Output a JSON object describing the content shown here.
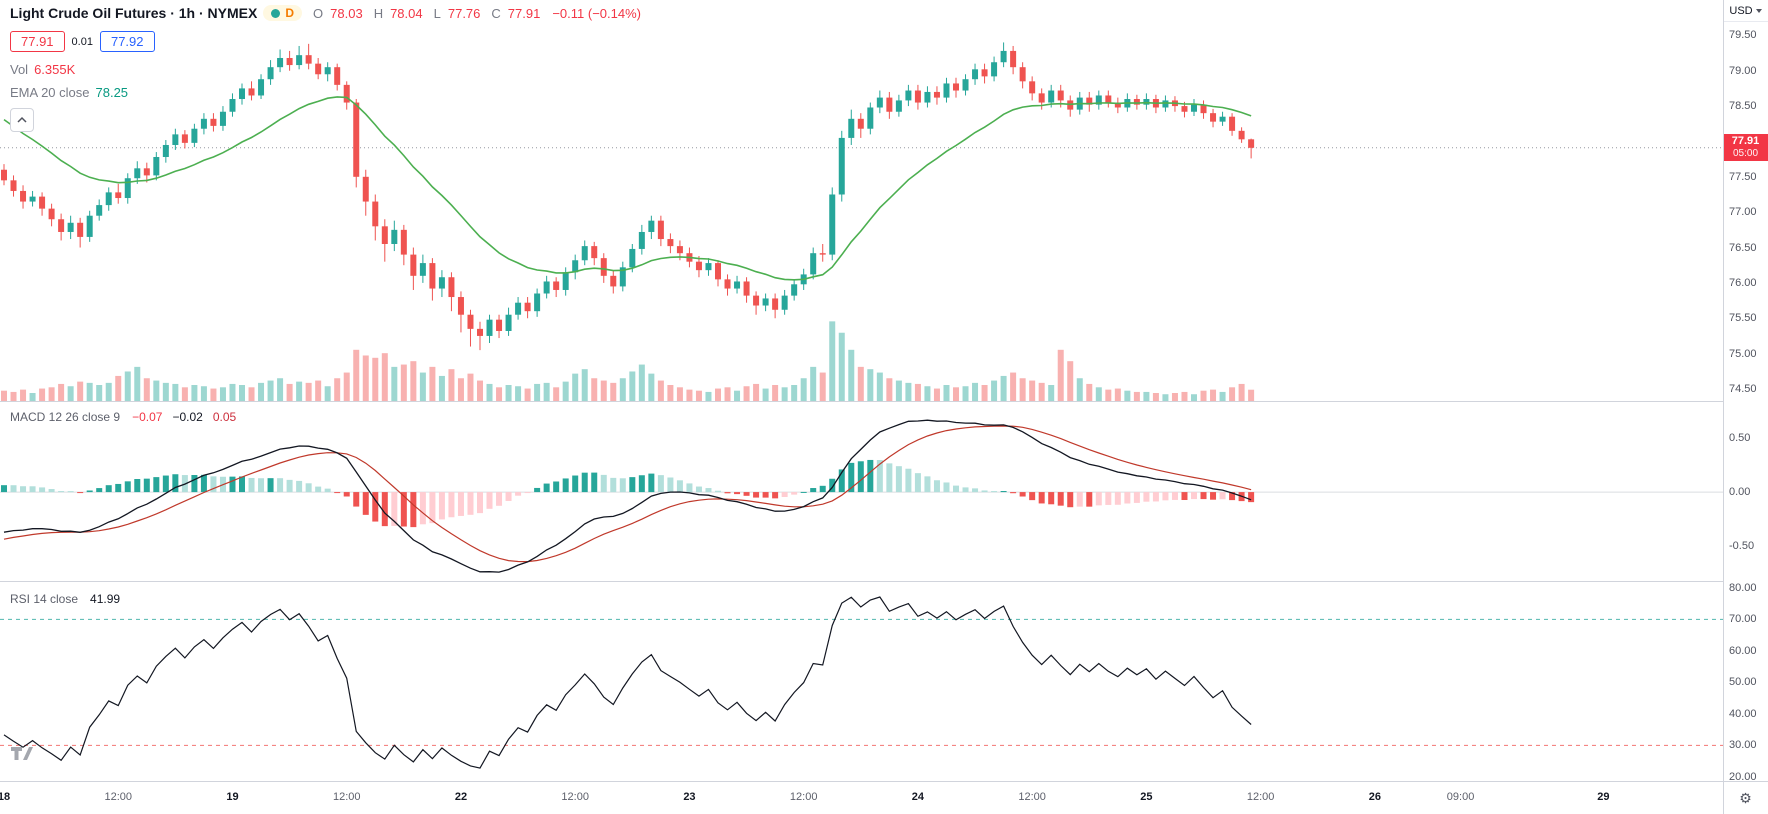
{
  "header": {
    "symbol_title": "Light Crude Oil Futures · 1h · NYMEX",
    "delayed_badge": "D",
    "ohlc": {
      "o_label": "O",
      "o": "78.03",
      "h_label": "H",
      "h": "78.04",
      "l_label": "L",
      "l": "77.76",
      "c_label": "C",
      "c": "77.91",
      "change": "−0.11 (−0.14%)"
    },
    "sell_price": "77.91",
    "spread": "0.01",
    "buy_price": "77.92",
    "vol_label": "Vol",
    "vol_value": "6.355K",
    "ema_label": "EMA 20 close",
    "ema_value": "78.25"
  },
  "macd_legend": {
    "label": "MACD 12 26 close 9",
    "hist": "−0.07",
    "macd": "−0.02",
    "signal": "0.05"
  },
  "rsi_legend": {
    "label": "RSI 14 close",
    "value": "41.99"
  },
  "price_axis": {
    "currency": "USD",
    "last_price_label": "77.91",
    "countdown": "05:00"
  },
  "chart_data": {
    "type": "candlestick",
    "symbol": "Light Crude Oil Futures",
    "timeframe": "1h",
    "exchange": "NYMEX",
    "price_range": [
      74.33,
      80.0
    ],
    "last_price": 77.91,
    "volume_max": 45,
    "price_ticks": [
      {
        "v": 79.5,
        "t": "79.50"
      },
      {
        "v": 79.0,
        "t": "79.00"
      },
      {
        "v": 78.5,
        "t": "78.50"
      },
      {
        "v": 77.5,
        "t": "77.50"
      },
      {
        "v": 77.0,
        "t": "77.00"
      },
      {
        "v": 76.5,
        "t": "76.50"
      },
      {
        "v": 76.0,
        "t": "76.00"
      },
      {
        "v": 75.5,
        "t": "75.50"
      },
      {
        "v": 75.0,
        "t": "75.00"
      },
      {
        "v": 74.5,
        "t": "74.50"
      }
    ],
    "time_labels": [
      {
        "i": 0,
        "t": "18",
        "major": true
      },
      {
        "i": 12,
        "t": "12:00",
        "major": false
      },
      {
        "i": 24,
        "t": "19",
        "major": true
      },
      {
        "i": 36,
        "t": "12:00",
        "major": false
      },
      {
        "i": 48,
        "t": "22",
        "major": true
      },
      {
        "i": 60,
        "t": "12:00",
        "major": false
      },
      {
        "i": 72,
        "t": "23",
        "major": true
      },
      {
        "i": 84,
        "t": "12:00",
        "major": false
      },
      {
        "i": 96,
        "t": "24",
        "major": true
      },
      {
        "i": 108,
        "t": "12:00",
        "major": false
      },
      {
        "i": 120,
        "t": "25",
        "major": true
      },
      {
        "i": 132,
        "t": "12:00",
        "major": false
      },
      {
        "i": 144,
        "t": "26",
        "major": true
      },
      {
        "i": 153,
        "t": "09:00",
        "major": false
      },
      {
        "i": 168,
        "t": "29",
        "major": true
      }
    ],
    "indicators": {
      "ema": {
        "period": 20,
        "start_value": 78.4,
        "last_value": "78.25"
      },
      "macd": {
        "fast": 12,
        "slow": 26,
        "smoothing": 9,
        "start_macd": -0.4,
        "start_signal": -0.45,
        "range": [
          -0.82,
          0.84
        ],
        "ticks": [
          {
            "v": 0.5,
            "t": "0.50"
          },
          {
            "v": 0,
            "t": "0.00"
          },
          {
            "v": -0.5,
            "t": "-0.50"
          }
        ]
      },
      "rsi": {
        "period": 14,
        "seed_gain": 0.06,
        "seed_loss": 0.12,
        "bands": [
          70,
          30
        ],
        "range": [
          18.7,
          82.2
        ],
        "ticks": [
          {
            "v": 80,
            "t": "80.00"
          },
          {
            "v": 70,
            "t": "70.00"
          },
          {
            "v": 60,
            "t": "60.00"
          },
          {
            "v": 50,
            "t": "50.00"
          },
          {
            "v": 40,
            "t": "40.00"
          },
          {
            "v": 30,
            "t": "30.00"
          },
          {
            "v": 20,
            "t": "20.00"
          }
        ]
      }
    },
    "colors": {
      "up": "#26a69a",
      "down": "#ef5350",
      "vol_up": "rgba(38,166,154,0.45)",
      "vol_down": "rgba(239,83,80,0.45)",
      "ema": "#4caf50",
      "macd_line": "#131722",
      "macd_signal": "#c0392b",
      "hist_up": "#26a69a",
      "hist_up_faded": "#b2dfdb",
      "hist_down": "#ef5350",
      "hist_down_faded": "#ffcdd2",
      "rsi_line": "#131722",
      "rsi_upper_band": "#26a69a",
      "rsi_lower_band": "#ef5350",
      "last_price_line": "#9598a1",
      "badge_bg": "#f23645"
    },
    "candles": [
      [
        77.6,
        77.68,
        77.38,
        77.45,
        5.8
      ],
      [
        77.45,
        77.52,
        77.22,
        77.3,
        5.1
      ],
      [
        77.3,
        77.38,
        77.05,
        77.15,
        6.4
      ],
      [
        77.15,
        77.3,
        77.08,
        77.22,
        4.5
      ],
      [
        77.22,
        77.28,
        76.95,
        77.05,
        7.0
      ],
      [
        77.05,
        77.12,
        76.8,
        76.9,
        7.7
      ],
      [
        76.9,
        76.98,
        76.6,
        76.72,
        9.6
      ],
      [
        76.72,
        76.95,
        76.62,
        76.85,
        8.3
      ],
      [
        76.85,
        76.92,
        76.5,
        76.65,
        10.9
      ],
      [
        76.65,
        77.02,
        76.58,
        76.95,
        10.2
      ],
      [
        76.95,
        77.18,
        76.88,
        77.1,
        9.0
      ],
      [
        77.1,
        77.35,
        77.02,
        77.28,
        10.2
      ],
      [
        77.28,
        77.4,
        77.12,
        77.2,
        14.1
      ],
      [
        77.2,
        77.55,
        77.12,
        77.48,
        16.6
      ],
      [
        77.48,
        77.72,
        77.4,
        77.62,
        19.2
      ],
      [
        77.62,
        77.7,
        77.42,
        77.52,
        12.8
      ],
      [
        77.52,
        77.85,
        77.45,
        77.78,
        11.5
      ],
      [
        77.78,
        78.02,
        77.7,
        77.95,
        10.2
      ],
      [
        77.95,
        78.18,
        77.88,
        78.1,
        9.6
      ],
      [
        78.1,
        78.16,
        77.9,
        77.98,
        7.7
      ],
      [
        77.98,
        78.25,
        77.92,
        78.18,
        9.0
      ],
      [
        78.18,
        78.4,
        78.1,
        78.32,
        8.3
      ],
      [
        78.32,
        78.4,
        78.14,
        78.22,
        7.0
      ],
      [
        78.22,
        78.5,
        78.15,
        78.42,
        7.7
      ],
      [
        78.42,
        78.68,
        78.35,
        78.6,
        9.6
      ],
      [
        78.6,
        78.82,
        78.52,
        78.75,
        9.0
      ],
      [
        78.75,
        78.85,
        78.58,
        78.65,
        7.7
      ],
      [
        78.65,
        78.95,
        78.6,
        78.88,
        10.2
      ],
      [
        78.88,
        79.15,
        78.8,
        79.05,
        11.5
      ],
      [
        79.05,
        79.3,
        78.98,
        79.18,
        12.8
      ],
      [
        79.18,
        79.28,
        79.0,
        79.08,
        9.6
      ],
      [
        79.08,
        79.35,
        79.02,
        79.22,
        10.9
      ],
      [
        79.22,
        79.38,
        79.02,
        79.1,
        10.2
      ],
      [
        79.1,
        79.18,
        78.88,
        78.95,
        11.5
      ],
      [
        78.95,
        79.12,
        78.85,
        79.05,
        8.3
      ],
      [
        79.05,
        79.1,
        78.72,
        78.8,
        12.8
      ],
      [
        78.8,
        78.85,
        78.45,
        78.55,
        16.0
      ],
      [
        78.55,
        78.6,
        77.35,
        77.5,
        28.8
      ],
      [
        77.5,
        77.6,
        76.95,
        77.15,
        25.6
      ],
      [
        77.15,
        77.25,
        76.6,
        76.8,
        24.3
      ],
      [
        76.8,
        76.9,
        76.3,
        76.55,
        26.9
      ],
      [
        76.55,
        76.88,
        76.45,
        76.75,
        19.2
      ],
      [
        76.75,
        76.82,
        76.25,
        76.4,
        20.5
      ],
      [
        76.4,
        76.5,
        75.9,
        76.1,
        22.4
      ],
      [
        76.1,
        76.4,
        76.0,
        76.28,
        16.0
      ],
      [
        76.28,
        76.35,
        75.75,
        75.92,
        19.2
      ],
      [
        75.92,
        76.18,
        75.8,
        76.08,
        14.1
      ],
      [
        76.08,
        76.15,
        75.6,
        75.8,
        17.9
      ],
      [
        75.8,
        75.88,
        75.3,
        75.55,
        12.8
      ],
      [
        75.55,
        75.62,
        75.1,
        75.35,
        15.4
      ],
      [
        75.35,
        75.45,
        75.05,
        75.25,
        11.5
      ],
      [
        75.25,
        75.55,
        75.15,
        75.48,
        9.6
      ],
      [
        75.48,
        75.55,
        75.22,
        75.32,
        7.7
      ],
      [
        75.32,
        75.65,
        75.25,
        75.55,
        9.0
      ],
      [
        75.55,
        75.8,
        75.48,
        75.72,
        8.3
      ],
      [
        75.72,
        75.8,
        75.5,
        75.6,
        7.0
      ],
      [
        75.6,
        75.92,
        75.52,
        75.85,
        9.6
      ],
      [
        75.85,
        76.1,
        75.78,
        76.02,
        10.2
      ],
      [
        76.02,
        76.08,
        75.8,
        75.9,
        7.7
      ],
      [
        75.9,
        76.22,
        75.82,
        76.15,
        10.9
      ],
      [
        76.15,
        76.4,
        76.05,
        76.32,
        15.4
      ],
      [
        76.32,
        76.6,
        76.25,
        76.52,
        17.9
      ],
      [
        76.52,
        76.58,
        76.25,
        76.35,
        12.8
      ],
      [
        76.35,
        76.42,
        76.0,
        76.1,
        11.5
      ],
      [
        76.1,
        76.18,
        75.85,
        75.95,
        10.2
      ],
      [
        75.95,
        76.3,
        75.88,
        76.22,
        12.8
      ],
      [
        76.22,
        76.55,
        76.15,
        76.48,
        16.6
      ],
      [
        76.48,
        76.82,
        76.4,
        76.72,
        20.5
      ],
      [
        76.72,
        76.95,
        76.62,
        76.88,
        15.4
      ],
      [
        76.88,
        76.95,
        76.52,
        76.62,
        11.5
      ],
      [
        76.62,
        76.7,
        76.42,
        76.52,
        9.0
      ],
      [
        76.52,
        76.6,
        76.32,
        76.42,
        7.7
      ],
      [
        76.42,
        76.5,
        76.22,
        76.3,
        6.4
      ],
      [
        76.3,
        76.38,
        76.08,
        76.18,
        5.8
      ],
      [
        76.18,
        76.35,
        76.1,
        76.28,
        5.1
      ],
      [
        76.28,
        76.32,
        75.95,
        76.05,
        7.0
      ],
      [
        76.05,
        76.12,
        75.82,
        75.92,
        7.7
      ],
      [
        75.92,
        76.1,
        75.85,
        76.02,
        5.8
      ],
      [
        76.02,
        76.08,
        75.72,
        75.82,
        8.3
      ],
      [
        75.82,
        75.88,
        75.55,
        75.68,
        9.6
      ],
      [
        75.68,
        75.85,
        75.6,
        75.78,
        7.0
      ],
      [
        75.78,
        75.85,
        75.5,
        75.62,
        9.0
      ],
      [
        75.62,
        75.9,
        75.55,
        75.82,
        7.7
      ],
      [
        75.82,
        76.05,
        75.75,
        75.98,
        9.0
      ],
      [
        75.98,
        76.2,
        75.9,
        76.12,
        12.8
      ],
      [
        76.12,
        76.5,
        76.05,
        76.42,
        19.2
      ],
      [
        76.42,
        76.55,
        76.3,
        76.4,
        16.0
      ],
      [
        76.4,
        77.35,
        76.32,
        77.25,
        44.8
      ],
      [
        77.25,
        78.15,
        77.15,
        78.05,
        38.4
      ],
      [
        78.05,
        78.45,
        77.95,
        78.32,
        28.8
      ],
      [
        78.32,
        78.4,
        78.05,
        78.18,
        19.2
      ],
      [
        78.18,
        78.55,
        78.1,
        78.48,
        17.9
      ],
      [
        78.48,
        78.72,
        78.4,
        78.62,
        16.0
      ],
      [
        78.62,
        78.7,
        78.32,
        78.42,
        12.8
      ],
      [
        78.42,
        78.66,
        78.35,
        78.58,
        11.5
      ],
      [
        78.58,
        78.8,
        78.5,
        78.72,
        10.2
      ],
      [
        78.72,
        78.8,
        78.45,
        78.55,
        9.6
      ],
      [
        78.55,
        78.78,
        78.48,
        78.7,
        8.3
      ],
      [
        78.7,
        78.78,
        78.52,
        78.62,
        7.0
      ],
      [
        78.62,
        78.9,
        78.55,
        78.82,
        9.0
      ],
      [
        78.82,
        78.9,
        78.62,
        78.72,
        7.7
      ],
      [
        78.72,
        78.95,
        78.65,
        78.88,
        8.3
      ],
      [
        78.88,
        79.1,
        78.8,
        79.02,
        10.2
      ],
      [
        79.02,
        79.1,
        78.82,
        78.92,
        9.0
      ],
      [
        78.92,
        79.2,
        78.85,
        79.12,
        11.5
      ],
      [
        79.12,
        79.4,
        79.05,
        79.28,
        14.1
      ],
      [
        79.28,
        79.35,
        78.95,
        79.05,
        16.0
      ],
      [
        79.05,
        79.12,
        78.75,
        78.85,
        12.8
      ],
      [
        78.85,
        78.92,
        78.58,
        78.68,
        11.5
      ],
      [
        78.68,
        78.75,
        78.45,
        78.55,
        10.2
      ],
      [
        78.55,
        78.8,
        78.48,
        78.72,
        9.0
      ],
      [
        78.72,
        78.8,
        78.48,
        78.58,
        28.8
      ],
      [
        78.58,
        78.65,
        78.35,
        78.45,
        22.4
      ],
      [
        78.45,
        78.7,
        78.38,
        78.62,
        12.8
      ],
      [
        78.62,
        78.7,
        78.42,
        78.52,
        9.6
      ],
      [
        78.52,
        78.72,
        78.45,
        78.65,
        7.7
      ],
      [
        78.65,
        78.72,
        78.48,
        78.55,
        6.4
      ],
      [
        78.55,
        78.62,
        78.4,
        78.48,
        7.0
      ],
      [
        78.48,
        78.68,
        78.42,
        78.6,
        5.8
      ],
      [
        78.6,
        78.66,
        78.45,
        78.52,
        5.1
      ],
      [
        78.52,
        78.68,
        78.45,
        78.6,
        5.1
      ],
      [
        78.6,
        78.66,
        78.4,
        78.48,
        4.5
      ],
      [
        78.48,
        78.65,
        78.42,
        78.58,
        3.8
      ],
      [
        78.58,
        78.64,
        78.42,
        78.5,
        4.5
      ],
      [
        78.5,
        78.56,
        78.34,
        78.42,
        5.1
      ],
      [
        78.42,
        78.6,
        78.36,
        78.52,
        3.8
      ],
      [
        78.52,
        78.58,
        78.32,
        78.4,
        5.8
      ],
      [
        78.4,
        78.46,
        78.2,
        78.28,
        6.4
      ],
      [
        78.28,
        78.42,
        78.22,
        78.35,
        5.1
      ],
      [
        78.35,
        78.4,
        78.08,
        78.15,
        7.7
      ],
      [
        78.15,
        78.2,
        77.98,
        78.03,
        9.6
      ],
      [
        78.03,
        78.04,
        77.76,
        77.91,
        6.355
      ]
    ]
  }
}
